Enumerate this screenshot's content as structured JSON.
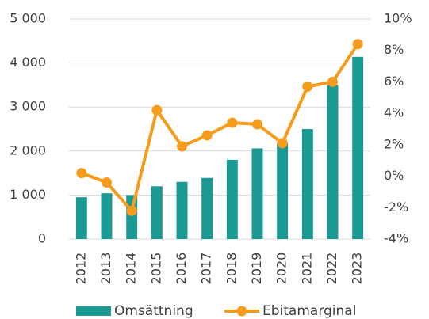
{
  "chart_data": {
    "type": "bar",
    "categories": [
      "2012",
      "2013",
      "2014",
      "2015",
      "2016",
      "2017",
      "2018",
      "2019",
      "2020",
      "2021",
      "2022",
      "2023"
    ],
    "series": [
      {
        "name": "Omsättning",
        "color": "#1b9a94",
        "type": "bar",
        "values": [
          950,
          1040,
          1000,
          1200,
          1300,
          1390,
          1800,
          2060,
          2180,
          2500,
          3500,
          4140
        ]
      },
      {
        "name": "Ebitamarginal",
        "color": "#f59c1c",
        "type": "line",
        "axis": "y2",
        "values": [
          0.2,
          -0.4,
          -2.2,
          4.2,
          1.9,
          2.6,
          3.4,
          3.3,
          2.1,
          5.7,
          6.0,
          8.4
        ]
      }
    ],
    "ylim": [
      0,
      5000
    ],
    "yticks": [
      0,
      {
        "value": 1000,
        "label": "1 000"
      },
      {
        "value": 2000,
        "label": "2 000"
      },
      {
        "value": 3000,
        "label": "3 000"
      },
      {
        "value": 4000,
        "label": "4 000"
      },
      {
        "value": 5000,
        "label": "5 000"
      }
    ],
    "y2lim": [
      -4,
      10
    ],
    "y2ticks": [
      {
        "value": -4,
        "label": "-4%"
      },
      {
        "value": -2,
        "label": "-2%"
      },
      {
        "value": 0,
        "label": "0%"
      },
      {
        "value": 2,
        "label": "2%"
      },
      {
        "value": 4,
        "label": "4%"
      },
      {
        "value": 6,
        "label": "6%"
      },
      {
        "value": 8,
        "label": "8%"
      },
      {
        "value": 10,
        "label": "10%"
      }
    ],
    "grid": true,
    "legend": "bottom"
  }
}
